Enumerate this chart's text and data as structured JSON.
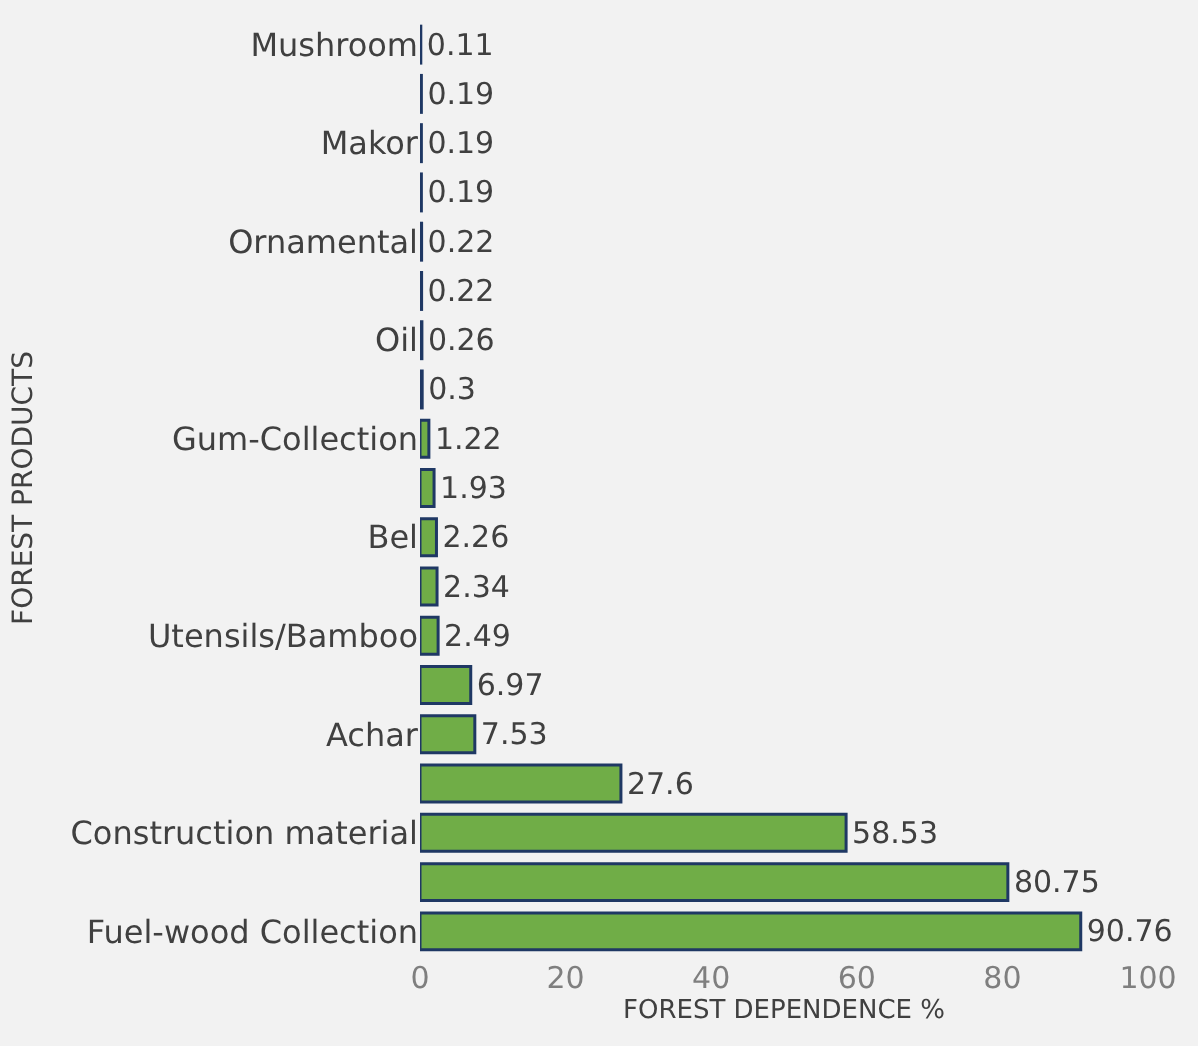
{
  "chart_data": {
    "type": "bar",
    "orientation": "horizontal",
    "xlabel": "FOREST DEPENDENCE %",
    "ylabel": "FOREST PRODUCTS",
    "categories": [
      "Mushroom",
      null,
      "Makor",
      null,
      "Ornamental",
      null,
      "Oil",
      null,
      "Gum-Collection",
      null,
      "Bel",
      null,
      "Utensils/Bamboo",
      null,
      "Achar",
      null,
      "Construction material",
      null,
      "Fuel-wood Collection"
    ],
    "values": [
      0.11,
      0.19,
      0.19,
      0.19,
      0.22,
      0.22,
      0.26,
      0.3,
      1.22,
      1.93,
      2.26,
      2.34,
      2.49,
      6.97,
      7.53,
      27.6,
      58.53,
      80.75,
      90.76
    ],
    "color": "#70ad47",
    "xlim": [
      0,
      100
    ],
    "xticks": [
      0,
      20,
      40,
      60,
      80,
      100
    ],
    "grid": false,
    "legend": false,
    "data_labels": true
  }
}
